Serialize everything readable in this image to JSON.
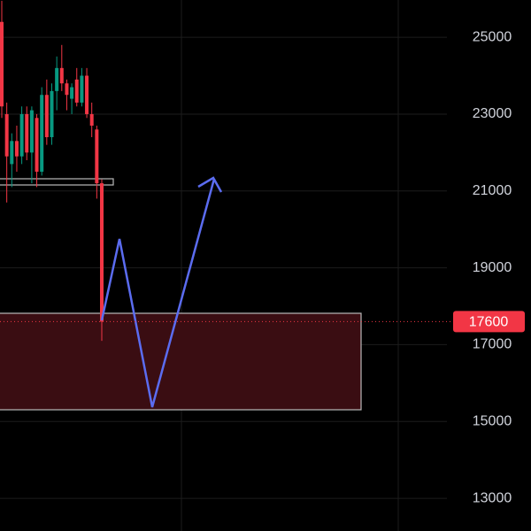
{
  "chart_data": {
    "type": "candlestick",
    "categories": [
      null,
      null,
      null,
      null,
      null,
      null,
      null,
      null,
      null,
      null,
      null,
      null,
      null,
      null,
      null,
      null,
      null,
      null,
      null,
      null,
      null
    ],
    "series": [
      {
        "name": "open",
        "values": [
          25400,
          23000,
          21700,
          22300,
          21900,
          23000,
          22000,
          22900,
          21500,
          23500,
          22400,
          23600,
          24200,
          23800,
          23400,
          23900,
          23300,
          24000,
          23000,
          22600,
          21200
        ]
      },
      {
        "name": "high",
        "values": [
          25950,
          23300,
          22500,
          22700,
          23200,
          23200,
          23200,
          23000,
          23700,
          23900,
          23800,
          24500,
          24800,
          23900,
          23800,
          24200,
          24200,
          24200,
          23300,
          22700,
          21300
        ]
      },
      {
        "name": "low",
        "values": [
          22900,
          20700,
          21100,
          21500,
          21700,
          21800,
          21200,
          21100,
          21400,
          22200,
          22200,
          23100,
          23600,
          23100,
          23000,
          23200,
          23200,
          22900,
          22400,
          20800,
          17100
        ]
      },
      {
        "name": "close",
        "values": [
          23200,
          21900,
          22300,
          21900,
          23000,
          22000,
          23100,
          21500,
          23500,
          22400,
          23600,
          24200,
          23800,
          23500,
          23700,
          23300,
          24000,
          23000,
          22700,
          21200,
          17600
        ]
      }
    ],
    "up_color": "#089981",
    "down_color": "#f23645",
    "ylim": [
      12150,
      25970
    ],
    "yticks": [
      13000,
      15000,
      17000,
      19000,
      21000,
      23000,
      25000
    ],
    "grid": true,
    "price_label": 17600
  }
}
